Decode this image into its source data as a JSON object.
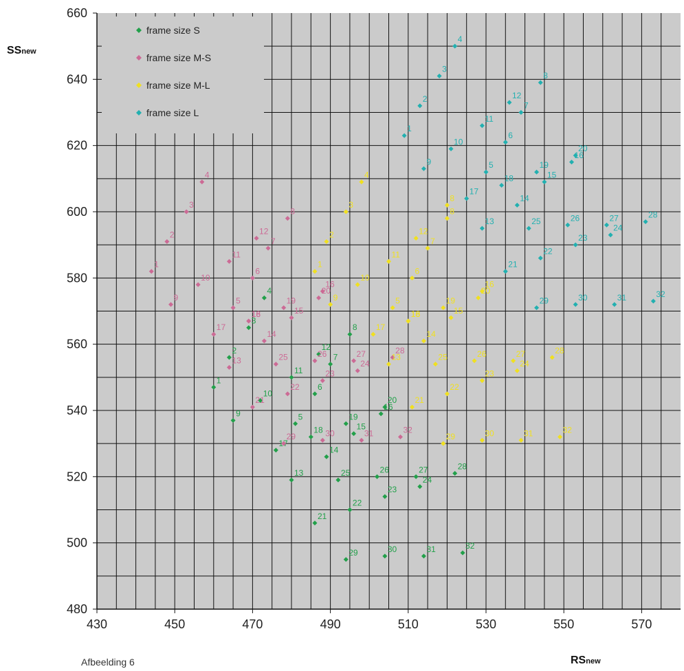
{
  "caption": "Afbeelding 6",
  "colors": {
    "S": "#22a04a",
    "MS": "#cc6a95",
    "ML": "#f0e020",
    "L": "#22b0b0"
  },
  "chart_data": {
    "type": "scatter",
    "title": "",
    "xlabel": {
      "main": "RS",
      "sub": "new"
    },
    "ylabel": {
      "main": "SS",
      "sub": "new"
    },
    "xlim": [
      430,
      580
    ],
    "ylim": [
      480,
      660
    ],
    "xticks": [
      430,
      450,
      470,
      490,
      510,
      530,
      550,
      570
    ],
    "yticks": [
      480,
      500,
      520,
      540,
      560,
      580,
      600,
      620,
      640,
      660
    ],
    "grid": true,
    "legend_position": "top-left",
    "series": [
      {
        "name": "frame size S",
        "key": "S",
        "points": [
          {
            "label": "1",
            "x": 460,
            "y": 547
          },
          {
            "label": "2",
            "x": 464,
            "y": 556
          },
          {
            "label": "3",
            "x": 469,
            "y": 565
          },
          {
            "label": "4",
            "x": 473,
            "y": 574
          },
          {
            "label": "5",
            "x": 481,
            "y": 536
          },
          {
            "label": "6",
            "x": 486,
            "y": 545
          },
          {
            "label": "7",
            "x": 490,
            "y": 554
          },
          {
            "label": "8",
            "x": 495,
            "y": 563
          },
          {
            "label": "9",
            "x": 465,
            "y": 537
          },
          {
            "label": "10",
            "x": 472,
            "y": 543
          },
          {
            "label": "11",
            "x": 480,
            "y": 550
          },
          {
            "label": "12",
            "x": 487,
            "y": 557
          },
          {
            "label": "13",
            "x": 480,
            "y": 519
          },
          {
            "label": "14",
            "x": 489,
            "y": 526
          },
          {
            "label": "15",
            "x": 496,
            "y": 533
          },
          {
            "label": "16",
            "x": 503,
            "y": 539
          },
          {
            "label": "17",
            "x": 476,
            "y": 528
          },
          {
            "label": "18",
            "x": 485,
            "y": 532
          },
          {
            "label": "19",
            "x": 494,
            "y": 536
          },
          {
            "label": "20",
            "x": 504,
            "y": 541
          },
          {
            "label": "21",
            "x": 486,
            "y": 506
          },
          {
            "label": "22",
            "x": 495,
            "y": 510
          },
          {
            "label": "23",
            "x": 504,
            "y": 514
          },
          {
            "label": "24",
            "x": 513,
            "y": 517
          },
          {
            "label": "25",
            "x": 492,
            "y": 519
          },
          {
            "label": "26",
            "x": 502,
            "y": 520
          },
          {
            "label": "27",
            "x": 512,
            "y": 520
          },
          {
            "label": "28",
            "x": 522,
            "y": 521
          },
          {
            "label": "29",
            "x": 494,
            "y": 495
          },
          {
            "label": "30",
            "x": 504,
            "y": 496
          },
          {
            "label": "31",
            "x": 514,
            "y": 496
          },
          {
            "label": "32",
            "x": 524,
            "y": 497
          }
        ]
      },
      {
        "name": "frame size M-S",
        "key": "MS",
        "points": [
          {
            "label": "1",
            "x": 444,
            "y": 582
          },
          {
            "label": "2",
            "x": 448,
            "y": 591
          },
          {
            "label": "3",
            "x": 453,
            "y": 600
          },
          {
            "label": "4",
            "x": 457,
            "y": 609
          },
          {
            "label": "5",
            "x": 465,
            "y": 571
          },
          {
            "label": "6",
            "x": 470,
            "y": 580
          },
          {
            "label": "7",
            "x": 474,
            "y": 589
          },
          {
            "label": "8",
            "x": 479,
            "y": 598
          },
          {
            "label": "9",
            "x": 449,
            "y": 572
          },
          {
            "label": "10",
            "x": 456,
            "y": 578
          },
          {
            "label": "11",
            "x": 464,
            "y": 585
          },
          {
            "label": "12",
            "x": 471,
            "y": 592
          },
          {
            "label": "13",
            "x": 464,
            "y": 553
          },
          {
            "label": "14",
            "x": 473,
            "y": 561
          },
          {
            "label": "15",
            "x": 480,
            "y": 568
          },
          {
            "label": "16",
            "x": 469,
            "y": 567
          },
          {
            "label": "17",
            "x": 460,
            "y": 563
          },
          {
            "label": "18",
            "x": 469,
            "y": 567
          },
          {
            "label": "19",
            "x": 478,
            "y": 571
          },
          {
            "label": "20",
            "x": 487,
            "y": 574
          },
          {
            "label": "21",
            "x": 470,
            "y": 541
          },
          {
            "label": "22",
            "x": 479,
            "y": 545
          },
          {
            "label": "23",
            "x": 488,
            "y": 549
          },
          {
            "label": "24",
            "x": 497,
            "y": 552
          },
          {
            "label": "25",
            "x": 476,
            "y": 554
          },
          {
            "label": "26",
            "x": 486,
            "y": 555
          },
          {
            "label": "27",
            "x": 496,
            "y": 555
          },
          {
            "label": "28",
            "x": 506,
            "y": 556
          },
          {
            "label": "29",
            "x": 478,
            "y": 530
          },
          {
            "label": "30",
            "x": 488,
            "y": 531
          },
          {
            "label": "31",
            "x": 498,
            "y": 531
          },
          {
            "label": "32",
            "x": 508,
            "y": 532
          },
          {
            "label": "16",
            "x": 488,
            "y": 576
          }
        ]
      },
      {
        "name": "frame size M-L",
        "key": "ML",
        "points": [
          {
            "label": "1",
            "x": 486,
            "y": 582
          },
          {
            "label": "2",
            "x": 489,
            "y": 591
          },
          {
            "label": "3",
            "x": 494,
            "y": 600
          },
          {
            "label": "4",
            "x": 498,
            "y": 609
          },
          {
            "label": "5",
            "x": 506,
            "y": 571
          },
          {
            "label": "6",
            "x": 511,
            "y": 580
          },
          {
            "label": "7",
            "x": 515,
            "y": 589
          },
          {
            "label": "8",
            "x": 520,
            "y": 598
          },
          {
            "label": "9",
            "x": 490,
            "y": 572
          },
          {
            "label": "10",
            "x": 497,
            "y": 578
          },
          {
            "label": "11",
            "x": 505,
            "y": 585
          },
          {
            "label": "12",
            "x": 512,
            "y": 592
          },
          {
            "label": "13",
            "x": 505,
            "y": 554
          },
          {
            "label": "14",
            "x": 514,
            "y": 561
          },
          {
            "label": "15",
            "x": 521,
            "y": 568
          },
          {
            "label": "16",
            "x": 510,
            "y": 567
          },
          {
            "label": "17",
            "x": 501,
            "y": 563
          },
          {
            "label": "18",
            "x": 510,
            "y": 567
          },
          {
            "label": "19",
            "x": 519,
            "y": 571
          },
          {
            "label": "20",
            "x": 528,
            "y": 574
          },
          {
            "label": "21",
            "x": 511,
            "y": 541
          },
          {
            "label": "22",
            "x": 520,
            "y": 545
          },
          {
            "label": "23",
            "x": 529,
            "y": 549
          },
          {
            "label": "24",
            "x": 538,
            "y": 552
          },
          {
            "label": "25",
            "x": 517,
            "y": 554
          },
          {
            "label": "26",
            "x": 527,
            "y": 555
          },
          {
            "label": "27",
            "x": 537,
            "y": 555
          },
          {
            "label": "28",
            "x": 547,
            "y": 556
          },
          {
            "label": "29",
            "x": 519,
            "y": 530
          },
          {
            "label": "30",
            "x": 529,
            "y": 531
          },
          {
            "label": "31",
            "x": 539,
            "y": 531
          },
          {
            "label": "32",
            "x": 549,
            "y": 532
          },
          {
            "label": "16",
            "x": 529,
            "y": 576
          },
          {
            "label": "8",
            "x": 520,
            "y": 602
          }
        ]
      },
      {
        "name": "frame size L",
        "key": "L",
        "points": [
          {
            "label": "1",
            "x": 509,
            "y": 623
          },
          {
            "label": "2",
            "x": 513,
            "y": 632
          },
          {
            "label": "3",
            "x": 518,
            "y": 641
          },
          {
            "label": "4",
            "x": 522,
            "y": 650
          },
          {
            "label": "5",
            "x": 530,
            "y": 612
          },
          {
            "label": "6",
            "x": 535,
            "y": 621
          },
          {
            "label": "7",
            "x": 539,
            "y": 630
          },
          {
            "label": "8",
            "x": 544,
            "y": 639
          },
          {
            "label": "9",
            "x": 514,
            "y": 613
          },
          {
            "label": "10",
            "x": 521,
            "y": 619
          },
          {
            "label": "11",
            "x": 529,
            "y": 626
          },
          {
            "label": "12",
            "x": 536,
            "y": 633
          },
          {
            "label": "13",
            "x": 529,
            "y": 595
          },
          {
            "label": "14",
            "x": 538,
            "y": 602
          },
          {
            "label": "15",
            "x": 545,
            "y": 609
          },
          {
            "label": "16",
            "x": 552,
            "y": 615
          },
          {
            "label": "17",
            "x": 525,
            "y": 604
          },
          {
            "label": "18",
            "x": 534,
            "y": 608
          },
          {
            "label": "19",
            "x": 543,
            "y": 612
          },
          {
            "label": "20",
            "x": 553,
            "y": 617
          },
          {
            "label": "21",
            "x": 535,
            "y": 582
          },
          {
            "label": "22",
            "x": 544,
            "y": 586
          },
          {
            "label": "23",
            "x": 553,
            "y": 590
          },
          {
            "label": "24",
            "x": 562,
            "y": 593
          },
          {
            "label": "25",
            "x": 541,
            "y": 595
          },
          {
            "label": "26",
            "x": 551,
            "y": 596
          },
          {
            "label": "27",
            "x": 561,
            "y": 596
          },
          {
            "label": "28",
            "x": 571,
            "y": 597
          },
          {
            "label": "29",
            "x": 543,
            "y": 571
          },
          {
            "label": "30",
            "x": 553,
            "y": 572
          },
          {
            "label": "31",
            "x": 563,
            "y": 572
          },
          {
            "label": "32",
            "x": 573,
            "y": 573
          }
        ]
      }
    ]
  }
}
